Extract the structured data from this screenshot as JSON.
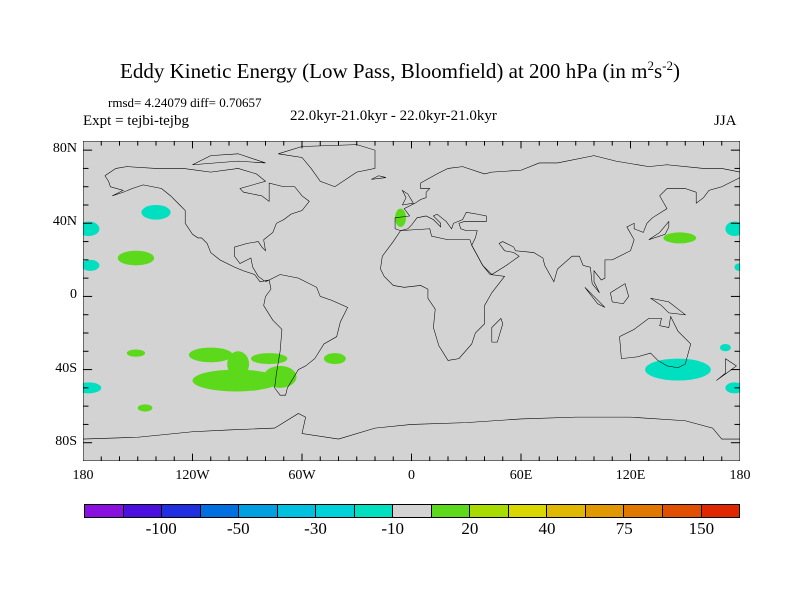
{
  "title": {
    "main": "Eddy Kinetic Energy (Low Pass, Bloomfield) at 200 hPa (in m",
    "sup1": "2",
    "mid": "s",
    "sup2": "-2",
    "end": ")"
  },
  "left_top": "rmsd= 4.24079 diff= 0.70657",
  "left_sub": "Expt = tejbi-tejbg",
  "center_sub": "22.0kyr-21.0kyr - 22.0kyr-21.0kyr",
  "right_sub": "JJA",
  "chart_data": {
    "type": "map",
    "projection": "cylindrical equidistant",
    "x_ticks": [
      {
        "lon": -180,
        "label": "180"
      },
      {
        "lon": -120,
        "label": "120W"
      },
      {
        "lon": -60,
        "label": "60W"
      },
      {
        "lon": 0,
        "label": "0"
      },
      {
        "lon": 60,
        "label": "60E"
      },
      {
        "lon": 120,
        "label": "120E"
      },
      {
        "lon": 180,
        "label": "180"
      }
    ],
    "y_ticks": [
      {
        "lat": 80,
        "label": "80N"
      },
      {
        "lat": 40,
        "label": "40N"
      },
      {
        "lat": 0,
        "label": "0"
      },
      {
        "lat": -40,
        "label": "40S"
      },
      {
        "lat": -80,
        "label": "80S"
      }
    ],
    "colorbar": {
      "colors": [
        "#8A10E0",
        "#4B10E0",
        "#2030E0",
        "#0070E0",
        "#00A0E0",
        "#00C0E0",
        "#00D0D8",
        "#00E0C0",
        "#D3D3D3",
        "#5CD91A",
        "#A8DC00",
        "#D8D800",
        "#E0B800",
        "#E09800",
        "#E07800",
        "#E05000",
        "#E02800"
      ],
      "labels": [
        {
          "boundary": 2,
          "text": "-100"
        },
        {
          "boundary": 4,
          "text": "-50"
        },
        {
          "boundary": 6,
          "text": "-30"
        },
        {
          "boundary": 8,
          "text": "-10"
        },
        {
          "boundary": 10,
          "text": "20"
        },
        {
          "boundary": 12,
          "text": "40"
        },
        {
          "boundary": 14,
          "text": "75"
        },
        {
          "boundary": 16,
          "text": "150"
        }
      ]
    },
    "background_color": "#D3D3D3",
    "regions": [
      {
        "sign": "neg",
        "lon": -140,
        "lat": 46,
        "rlon": 8,
        "rlat": 4
      },
      {
        "sign": "neg",
        "lon": -177,
        "lat": 37,
        "rlon": 6,
        "rlat": 4
      },
      {
        "sign": "neg",
        "lon": -176,
        "lat": 17,
        "rlon": 5,
        "rlat": 3
      },
      {
        "sign": "pos",
        "lon": -151,
        "lat": 21,
        "rlon": 10,
        "rlat": 4
      },
      {
        "sign": "pos",
        "lon": -6,
        "lat": 43,
        "rlon": 3,
        "rlat": 5
      },
      {
        "sign": "pos",
        "lon": 147,
        "lat": 32,
        "rlon": 9,
        "rlat": 3
      },
      {
        "sign": "neg",
        "lon": 177,
        "lat": 37,
        "rlon": 5,
        "rlat": 4
      },
      {
        "sign": "neg",
        "lon": 179,
        "lat": 16,
        "rlon": 2,
        "rlat": 2
      },
      {
        "sign": "pos",
        "lon": -151,
        "lat": -31,
        "rlon": 5,
        "rlat": 2
      },
      {
        "sign": "pos",
        "lon": -96,
        "lat": -46,
        "rlon": 24,
        "rlat": 6
      },
      {
        "sign": "pos",
        "lon": -110,
        "lat": -32,
        "rlon": 12,
        "rlat": 4
      },
      {
        "sign": "pos",
        "lon": -95,
        "lat": -37,
        "rlon": 6,
        "rlat": 7
      },
      {
        "sign": "pos",
        "lon": -78,
        "lat": -34,
        "rlon": 10,
        "rlat": 3
      },
      {
        "sign": "pos",
        "lon": -72,
        "lat": -44,
        "rlon": 9,
        "rlat": 6
      },
      {
        "sign": "pos",
        "lon": -42,
        "lat": -34,
        "rlon": 6,
        "rlat": 3
      },
      {
        "sign": "pos",
        "lon": -146,
        "lat": -61,
        "rlon": 4,
        "rlat": 2
      },
      {
        "sign": "neg",
        "lon": -177,
        "lat": -50,
        "rlon": 7,
        "rlat": 3
      },
      {
        "sign": "neg",
        "lon": 146,
        "lat": -40,
        "rlon": 18,
        "rlat": 6
      },
      {
        "sign": "neg",
        "lon": 172,
        "lat": -28,
        "rlon": 3,
        "rlat": 2
      },
      {
        "sign": "neg",
        "lon": 177,
        "lat": -50,
        "rlon": 5,
        "rlat": 3
      }
    ]
  }
}
